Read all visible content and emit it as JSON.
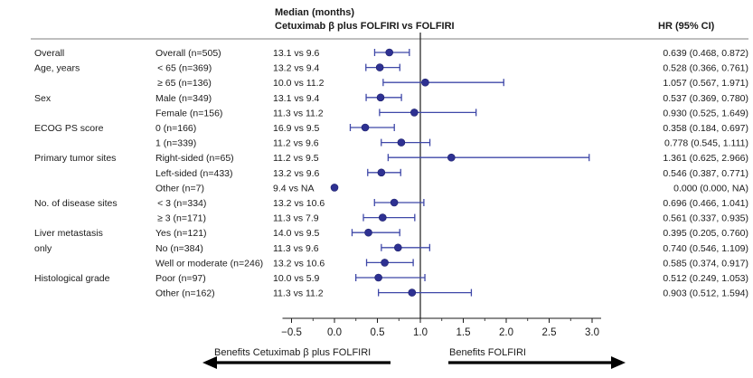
{
  "header": {
    "median_title": "Median (months)",
    "comparison": "Cetuximab β plus FOLFIRI vs FOLFIRI",
    "hr_title": "HR (95% CI)"
  },
  "colors": {
    "marker": "#2e3192",
    "ci_line": "#3f48a8",
    "axis": "#1a1a1a",
    "separator": "#555555"
  },
  "chart_data": {
    "type": "forest",
    "x_axis": {
      "min": -0.5,
      "max": 3.0,
      "reference_line": 1.0,
      "ticks": [
        -0.5,
        0.0,
        0.5,
        1.0,
        1.5,
        2.0,
        2.5,
        3.0
      ],
      "tick_labels": [
        "−0.5",
        "0.0",
        "0.5",
        "1.0",
        "1.5",
        "2.0",
        "2.5",
        "3.0"
      ]
    },
    "benefit_left": "Benefits Cetuximab β plus FOLFIRI",
    "benefit_right": "Benefits FOLFIRI",
    "rows": [
      {
        "category": "Overall",
        "subgroup": "Overall (n=505)",
        "median": "13.1 vs 9.6",
        "hr": 0.639,
        "lo": 0.468,
        "hi": 0.872,
        "hr_text": "0.639 (0.468, 0.872)"
      },
      {
        "category": "Age, years",
        "subgroup": " < 65 (n=369)",
        "median": "13.2 vs 9.4",
        "hr": 0.528,
        "lo": 0.366,
        "hi": 0.761,
        "hr_text": "0.528 (0.366, 0.761)"
      },
      {
        "category": "",
        "subgroup": " ≥ 65 (n=136)",
        "median": "10.0 vs 11.2",
        "hr": 1.057,
        "lo": 0.567,
        "hi": 1.971,
        "hr_text": "1.057 (0.567, 1.971)"
      },
      {
        "category": "Sex",
        "subgroup": "Male (n=349)",
        "median": "13.1 vs 9.4",
        "hr": 0.537,
        "lo": 0.369,
        "hi": 0.78,
        "hr_text": "0.537 (0.369, 0.780)"
      },
      {
        "category": "",
        "subgroup": "Female (n=156)",
        "median": "11.3 vs 11.2",
        "hr": 0.93,
        "lo": 0.525,
        "hi": 1.649,
        "hr_text": "0.930 (0.525, 1.649)"
      },
      {
        "category": "ECOG PS score",
        "subgroup": "0 (n=166)",
        "median": "16.9 vs 9.5",
        "hr": 0.358,
        "lo": 0.184,
        "hi": 0.697,
        "hr_text": "0.358 (0.184, 0.697)"
      },
      {
        "category": "",
        "subgroup": "1 (n=339)",
        "median": "11.2 vs 9.6",
        "hr": 0.778,
        "lo": 0.545,
        "hi": 1.111,
        "hr_text": "0.778 (0.545, 1.111)"
      },
      {
        "category": "Primary tumor sites",
        "subgroup": "Right-sided (n=65)",
        "median": "11.2 vs 9.5",
        "hr": 1.361,
        "lo": 0.625,
        "hi": 2.966,
        "hr_text": "1.361 (0.625, 2.966)"
      },
      {
        "category": "",
        "subgroup": "Left-sided (n=433)",
        "median": "13.2 vs 9.6",
        "hr": 0.546,
        "lo": 0.387,
        "hi": 0.771,
        "hr_text": "0.546 (0.387, 0.771)"
      },
      {
        "category": "",
        "subgroup": "Other (n=7)",
        "median": "9.4 vs NA",
        "hr": 0.0,
        "lo": 0.0,
        "hi": null,
        "hr_text": "0.000 (0.000, NA)"
      },
      {
        "category": "No. of disease sites",
        "subgroup": " < 3 (n=334)",
        "median": "13.2 vs 10.6",
        "hr": 0.696,
        "lo": 0.466,
        "hi": 1.041,
        "hr_text": "0.696 (0.466, 1.041)"
      },
      {
        "category": "",
        "subgroup": " ≥ 3 (n=171)",
        "median": "11.3 vs 7.9",
        "hr": 0.561,
        "lo": 0.337,
        "hi": 0.935,
        "hr_text": "0.561 (0.337, 0.935)"
      },
      {
        "category": "Liver metastasis",
        "subgroup": "Yes (n=121)",
        "median": "14.0 vs 9.5",
        "hr": 0.395,
        "lo": 0.205,
        "hi": 0.76,
        "hr_text": "0.395 (0.205, 0.760)"
      },
      {
        "category": "only",
        "subgroup": "No (n=384)",
        "median": "11.3 vs 9.6",
        "hr": 0.74,
        "lo": 0.546,
        "hi": 1.109,
        "hr_text": "0.740 (0.546, 1.109)"
      },
      {
        "category": "",
        "subgroup": "Well or moderate (n=246)",
        "median": "13.2 vs 10.6",
        "hr": 0.585,
        "lo": 0.374,
        "hi": 0.917,
        "hr_text": "0.585 (0.374, 0.917)"
      },
      {
        "category": "Histological grade",
        "subgroup": "Poor (n=97)",
        "median": "10.0 vs 5.9",
        "hr": 0.512,
        "lo": 0.249,
        "hi": 1.053,
        "hr_text": "0.512 (0.249, 1.053)"
      },
      {
        "category": "",
        "subgroup": "Other (n=162)",
        "median": "11.3 vs 11.2",
        "hr": 0.903,
        "lo": 0.512,
        "hi": 1.594,
        "hr_text": "0.903 (0.512, 1.594)"
      }
    ]
  }
}
